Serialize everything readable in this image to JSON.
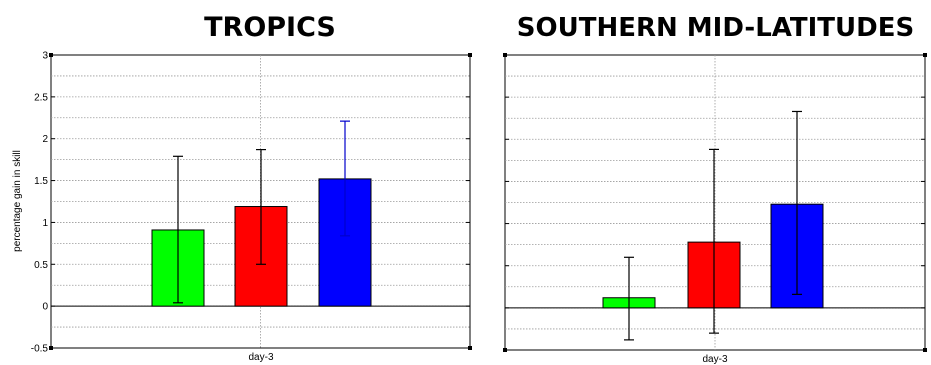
{
  "chart_data": [
    {
      "type": "bar",
      "title": "TROPICS",
      "ylabel": "percentage gain in skill",
      "xlabel": "day-3",
      "ylim": [
        -0.5,
        3
      ],
      "yticks": [
        -0.5,
        0,
        0.5,
        1,
        1.5,
        2,
        2.5,
        3
      ],
      "ytick_labels": [
        "-0.5",
        "0",
        "0.5",
        "1",
        "1.5",
        "2",
        "2.5",
        "3"
      ],
      "grid": true,
      "bars": [
        {
          "value": 0.91,
          "err_low": 0.04,
          "err_high": 1.79,
          "color": "#00ff00",
          "error_color": "#000000"
        },
        {
          "value": 1.19,
          "err_low": 0.5,
          "err_high": 1.87,
          "color": "#ff0000",
          "error_color": "#000000"
        },
        {
          "value": 1.52,
          "err_low": 0.84,
          "err_high": 2.21,
          "color": "#0000ff",
          "error_color": "#0000cc"
        }
      ]
    },
    {
      "type": "bar",
      "title": "SOUTHERN MID-LATITUDES",
      "ylabel": "",
      "xlabel": "day-3",
      "ylim": [
        -0.5,
        3
      ],
      "yticks": [
        -0.5,
        0,
        0.5,
        1,
        1.5,
        2,
        2.5,
        3
      ],
      "ytick_labels": [],
      "grid": true,
      "bars": [
        {
          "value": 0.12,
          "err_low": -0.38,
          "err_high": 0.6,
          "color": "#00ff00",
          "error_color": "#000000"
        },
        {
          "value": 0.78,
          "err_low": -0.3,
          "err_high": 1.88,
          "color": "#ff0000",
          "error_color": "#000000"
        },
        {
          "value": 1.23,
          "err_low": 0.16,
          "err_high": 2.33,
          "color": "#0000ff",
          "error_color": "#000000"
        }
      ]
    }
  ]
}
